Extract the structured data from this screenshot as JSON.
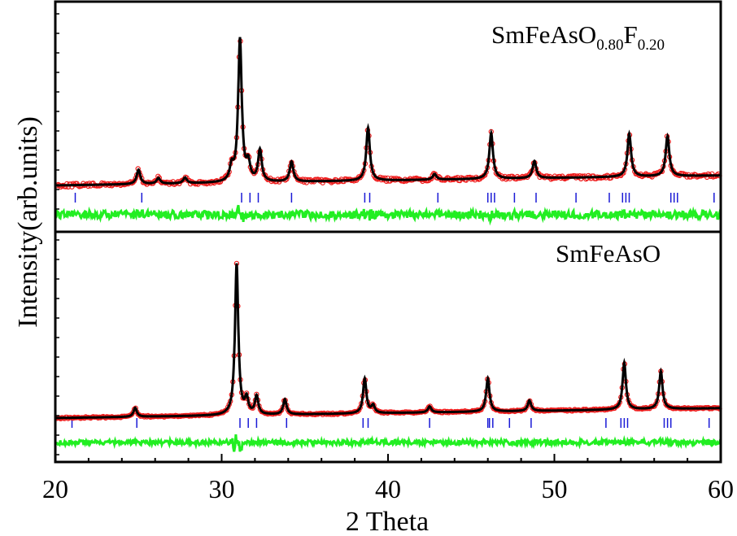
{
  "chart_data": {
    "type": "line",
    "xlabel": "2 Theta",
    "ylabel": "Intensity(arb.units)",
    "xlim": [
      20,
      60
    ],
    "x_ticks": [
      "20",
      "30",
      "40",
      "50",
      "60"
    ],
    "panels": [
      {
        "label_main": "SmFeAsO",
        "label_sub1": "0.80",
        "label_f": "F",
        "label_sub2": "0.20",
        "baseline": 0.15,
        "noise": 0.012,
        "peaks": [
          {
            "x": 25.0,
            "h": 0.1
          },
          {
            "x": 26.2,
            "h": 0.04
          },
          {
            "x": 27.8,
            "h": 0.04
          },
          {
            "x": 30.6,
            "h": 0.1
          },
          {
            "x": 31.1,
            "h": 1.0
          },
          {
            "x": 31.6,
            "h": 0.12
          },
          {
            "x": 32.3,
            "h": 0.22
          },
          {
            "x": 34.2,
            "h": 0.14
          },
          {
            "x": 38.8,
            "h": 0.37
          },
          {
            "x": 42.8,
            "h": 0.04
          },
          {
            "x": 46.2,
            "h": 0.32
          },
          {
            "x": 48.8,
            "h": 0.12
          },
          {
            "x": 54.5,
            "h": 0.3
          },
          {
            "x": 56.8,
            "h": 0.28
          }
        ],
        "bragg_positions": [
          21.2,
          25.2,
          31.2,
          31.7,
          32.2,
          34.2,
          38.6,
          38.9,
          43.0,
          46.0,
          46.2,
          46.4,
          47.6,
          48.9,
          51.3,
          53.3,
          54.1,
          54.3,
          54.5,
          57.0,
          57.2,
          57.4,
          59.6
        ]
      },
      {
        "label_main": "SmFeAsO",
        "baseline": 0.1,
        "noise": 0.005,
        "peaks": [
          {
            "x": 24.8,
            "h": 0.06
          },
          {
            "x": 30.9,
            "h": 1.0
          },
          {
            "x": 31.5,
            "h": 0.1
          },
          {
            "x": 32.1,
            "h": 0.12
          },
          {
            "x": 33.8,
            "h": 0.1
          },
          {
            "x": 38.6,
            "h": 0.23
          },
          {
            "x": 39.1,
            "h": 0.05
          },
          {
            "x": 42.5,
            "h": 0.04
          },
          {
            "x": 46.0,
            "h": 0.22
          },
          {
            "x": 48.5,
            "h": 0.07
          },
          {
            "x": 54.2,
            "h": 0.31
          },
          {
            "x": 56.4,
            "h": 0.25
          }
        ],
        "bragg_positions": [
          21.0,
          24.9,
          31.1,
          31.6,
          32.1,
          33.9,
          38.5,
          38.8,
          42.5,
          46.0,
          46.1,
          46.3,
          47.3,
          48.6,
          53.1,
          54.0,
          54.2,
          54.4,
          56.6,
          56.8,
          57.0,
          59.3
        ]
      }
    ],
    "series": [
      {
        "name": "observed",
        "color": "#ee1c1c"
      },
      {
        "name": "calculated",
        "color": "#000000"
      },
      {
        "name": "difference",
        "color": "#22ee22"
      },
      {
        "name": "bragg",
        "color": "#1a1ad6"
      }
    ]
  }
}
